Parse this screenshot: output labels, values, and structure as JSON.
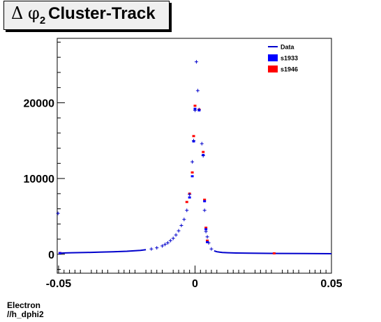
{
  "chart_data": {
    "type": "scatter",
    "title_main": "Cluster-Track",
    "title_symbol_delta": "Δ",
    "title_symbol_phi": "φ",
    "title_subscript": "2",
    "xlim": [
      -0.0505,
      0.05
    ],
    "ylim": [
      -2500,
      28500
    ],
    "x_ticks": [
      "-0.05",
      "0",
      "0.05"
    ],
    "x_tick_values": [
      -0.05,
      0,
      0.05
    ],
    "y_ticks": [
      "0",
      "10000",
      "20000"
    ],
    "y_tick_values": [
      0,
      10000,
      20000
    ],
    "grid": false,
    "legend_position": "top-right",
    "series": [
      {
        "name": "Data",
        "color": "#0000cc",
        "style": "line",
        "points": [
          [
            -0.0495,
            150
          ],
          [
            -0.0475,
            180
          ],
          [
            -0.045,
            200
          ],
          [
            -0.04,
            230
          ],
          [
            -0.035,
            280
          ],
          [
            -0.03,
            330
          ],
          [
            -0.025,
            400
          ],
          [
            -0.02,
            520
          ],
          [
            -0.018,
            600
          ],
          [
            -0.016,
            700
          ],
          [
            -0.014,
            850
          ],
          [
            -0.012,
            1100
          ],
          [
            -0.011,
            1300
          ],
          [
            -0.01,
            1500
          ],
          [
            -0.009,
            1800
          ],
          [
            -0.008,
            2100
          ],
          [
            -0.007,
            2550
          ],
          [
            -0.006,
            3100
          ],
          [
            -0.005,
            3800
          ],
          [
            -0.004,
            4600
          ],
          [
            -0.003,
            5800
          ],
          [
            -0.002,
            7900
          ],
          [
            -0.001,
            12200
          ],
          [
            -0.0005,
            15000
          ],
          [
            0.0,
            19000
          ],
          [
            0.0005,
            25400
          ],
          [
            0.001,
            21600
          ],
          [
            0.0015,
            19100
          ],
          [
            0.0025,
            14600
          ],
          [
            0.003,
            13000
          ],
          [
            0.0035,
            5800
          ],
          [
            0.004,
            3000
          ],
          [
            0.0045,
            2300
          ],
          [
            0.005,
            1500
          ],
          [
            0.006,
            700
          ],
          [
            0.007,
            450
          ],
          [
            0.008,
            330
          ],
          [
            0.009,
            280
          ],
          [
            0.01,
            240
          ],
          [
            0.012,
            200
          ],
          [
            0.015,
            170
          ],
          [
            0.02,
            140
          ],
          [
            0.03,
            110
          ],
          [
            0.04,
            90
          ],
          [
            0.05,
            80
          ],
          [
            -0.0502,
            5400
          ]
        ]
      },
      {
        "name": "s1933",
        "color": "#0000ff",
        "style": "box",
        "points": [
          [
            -0.0495,
            150
          ],
          [
            -0.002,
            7500
          ],
          [
            -0.001,
            10300
          ],
          [
            -0.0005,
            14900
          ],
          [
            0.0,
            19200
          ],
          [
            0.0015,
            19000
          ],
          [
            0.003,
            13100
          ],
          [
            0.0035,
            7000
          ],
          [
            0.004,
            3300
          ],
          [
            0.0045,
            1600
          ]
        ]
      },
      {
        "name": "s1946",
        "color": "#ff0000",
        "style": "box",
        "points": [
          [
            -0.0495,
            170
          ],
          [
            -0.003,
            6900
          ],
          [
            -0.002,
            8000
          ],
          [
            -0.001,
            10800
          ],
          [
            -0.0005,
            15600
          ],
          [
            0.0,
            19600
          ],
          [
            0.0015,
            19100
          ],
          [
            0.003,
            13500
          ],
          [
            0.0035,
            7200
          ],
          [
            0.004,
            3500
          ],
          [
            0.0045,
            1800
          ],
          [
            0.029,
            120
          ]
        ]
      }
    ]
  },
  "footer": {
    "line1": "Electron",
    "line2": "//h_dphi2"
  }
}
